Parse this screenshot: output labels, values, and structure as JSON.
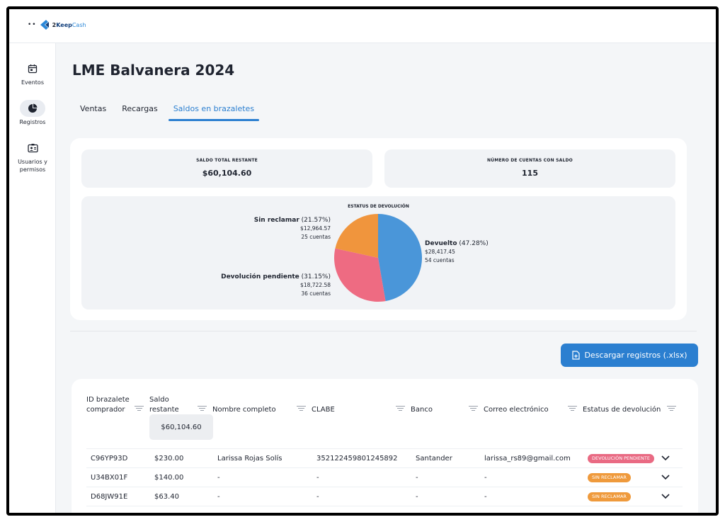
{
  "app": {
    "brand_prefix": "2",
    "brand_main": "Keep",
    "brand_suffix": "Cash",
    "dots": "••"
  },
  "sidebar": {
    "items": [
      {
        "label": "Eventos",
        "icon": "calendar-icon",
        "active": false
      },
      {
        "label": "Registros",
        "icon": "pie-chart-icon",
        "active": true
      },
      {
        "label": "Usuarios y permisos",
        "icon": "id-card-icon",
        "active": false
      }
    ]
  },
  "page": {
    "title": "LME Balvanera 2024"
  },
  "tabs": [
    {
      "label": "Ventas",
      "active": false
    },
    {
      "label": "Recargas",
      "active": false
    },
    {
      "label": "Saldos en brazaletes",
      "active": true
    }
  ],
  "summary": {
    "total_label": "SALDO TOTAL RESTANTE",
    "total_value": "$60,104.60",
    "accounts_label": "NÚMERO DE CUENTAS CON SALDO",
    "accounts_value": "115"
  },
  "chart_data": {
    "type": "pie",
    "title": "ESTATUS DE DEVOLUCIÓN",
    "slices": [
      {
        "name": "Devuelto",
        "percent_label": "(47.28%)",
        "value": 47.28,
        "amount": "$28,417.45",
        "count": "54 cuentas",
        "color": "#4a96d9"
      },
      {
        "name": "Devolución pendiente",
        "percent_label": "(31.15%)",
        "value": 31.15,
        "amount": "$18,722.58",
        "count": "36 cuentas",
        "color": "#ee6b82"
      },
      {
        "name": "Sin reclamar",
        "percent_label": "(21.57%)",
        "value": 21.57,
        "amount": "$12,964.57",
        "count": "25 cuentas",
        "color": "#f0953d"
      }
    ]
  },
  "actions": {
    "download_label": "Descargar registros (.xlsx)"
  },
  "table": {
    "headers": [
      {
        "line1": "ID brazalete",
        "line2": "comprador"
      },
      {
        "line1": "Saldo",
        "line2": "restante"
      },
      {
        "line1": "",
        "line2": "Nombre completo"
      },
      {
        "line1": "",
        "line2": "CLABE"
      },
      {
        "line1": "",
        "line2": "Banco"
      },
      {
        "line1": "",
        "line2": "Correo electrónico"
      },
      {
        "line1": "",
        "line2": "Estatus de devolución"
      }
    ],
    "total": "$60,104.60",
    "rows": [
      {
        "id": "C96YP93D",
        "balance": "$230.00",
        "name": "Larissa Rojas Solís",
        "clabe": "352122459801245892",
        "bank": "Santander",
        "email": "larissa_rs89@gmail.com",
        "status": "DEVOLUCIÓN PENDIENTE",
        "status_kind": "pending"
      },
      {
        "id": "U34BX01F",
        "balance": "$140.00",
        "name": "-",
        "clabe": "-",
        "bank": "-",
        "email": "-",
        "status": "SIN RECLAMAR",
        "status_kind": "unclaimed"
      },
      {
        "id": "D68JW91E",
        "balance": "$63.40",
        "name": "-",
        "clabe": "-",
        "bank": "-",
        "email": "-",
        "status": "SIN RECLAMAR",
        "status_kind": "unclaimed"
      }
    ]
  }
}
